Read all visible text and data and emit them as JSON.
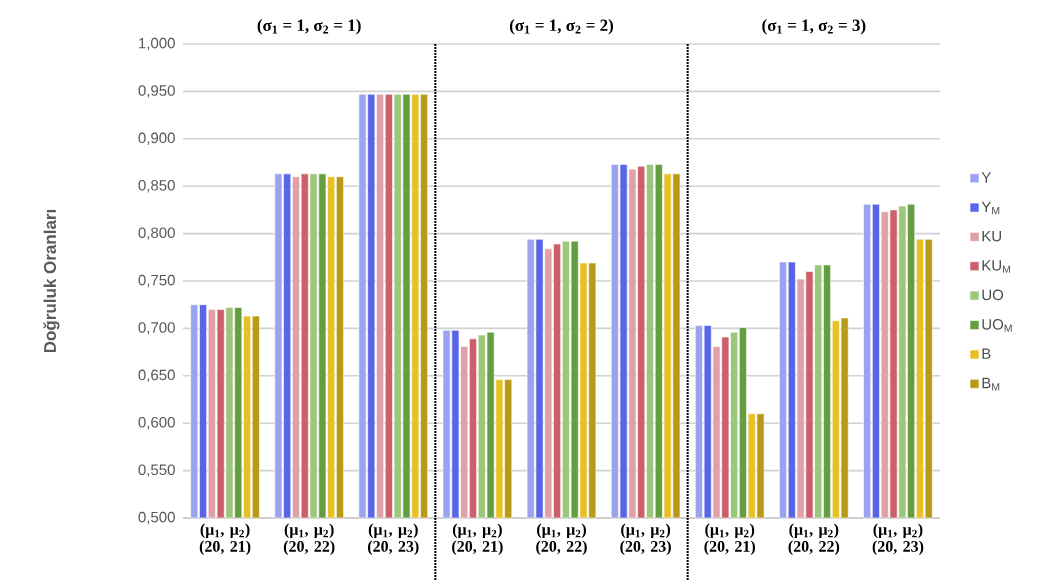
{
  "chart_data": {
    "type": "bar",
    "ylabel": "Doğruluk Oranları",
    "categories": [
      "(μ$_{1}$, μ$_{2}$) (20, 21)",
      "(μ$_{1}$, μ$_{2}$) (20, 22)",
      "(μ$_{1}$, μ$_{2}$) (20, 23)",
      "(μ$_{1}$, μ$_{2}$) (20, 21)",
      "(μ$_{1}$, μ$_{2}$) (20, 22)",
      "(μ$_{1}$, μ$_{2}$) (20, 23)",
      "(μ$_{1}$, μ$_{2}$) (20, 21)",
      "(μ$_{1}$, μ$_{2}$) (20, 22)",
      "(μ$_{1}$, μ$_{2}$) (20, 23)"
    ],
    "series": [
      {
        "name": "Y",
        "color": "#99a3ef",
        "values": [
          0.725,
          0.863,
          0.947,
          0.698,
          0.794,
          0.873,
          0.703,
          0.77,
          0.831
        ]
      },
      {
        "name": "Y$_{M}$",
        "color": "#5865e6",
        "values": [
          0.725,
          0.863,
          0.947,
          0.698,
          0.794,
          0.873,
          0.703,
          0.77,
          0.831
        ]
      },
      {
        "name": "KU",
        "color": "#e0a0a7",
        "values": [
          0.72,
          0.86,
          0.947,
          0.681,
          0.784,
          0.868,
          0.681,
          0.752,
          0.823
        ]
      },
      {
        "name": "KU$_{M}$",
        "color": "#cc5f69",
        "values": [
          0.72,
          0.863,
          0.947,
          0.689,
          0.789,
          0.871,
          0.691,
          0.76,
          0.825
        ]
      },
      {
        "name": "UO",
        "color": "#9ac77a",
        "values": [
          0.722,
          0.863,
          0.947,
          0.693,
          0.792,
          0.873,
          0.696,
          0.767,
          0.829
        ]
      },
      {
        "name": "UO$_{M}$",
        "color": "#659e40",
        "values": [
          0.722,
          0.863,
          0.947,
          0.696,
          0.792,
          0.873,
          0.701,
          0.767,
          0.831
        ]
      },
      {
        "name": "B",
        "color": "#e8c026",
        "values": [
          0.713,
          0.86,
          0.947,
          0.646,
          0.769,
          0.863,
          0.61,
          0.708,
          0.794
        ]
      },
      {
        "name": "B$_{M}$",
        "color": "#b89a18",
        "values": [
          0.713,
          0.86,
          0.947,
          0.646,
          0.769,
          0.863,
          0.61,
          0.711,
          0.794
        ]
      }
    ],
    "ylim": [
      0.5,
      1.0
    ],
    "yticks": [
      {
        "value": 0.5,
        "label": "0,500"
      },
      {
        "value": 0.55,
        "label": "0,550"
      },
      {
        "value": 0.6,
        "label": "0,600"
      },
      {
        "value": 0.65,
        "label": "0,650"
      },
      {
        "value": 0.7,
        "label": "0,700"
      },
      {
        "value": 0.75,
        "label": "0,750"
      },
      {
        "value": 0.8,
        "label": "0,800"
      },
      {
        "value": 0.85,
        "label": "0,850"
      },
      {
        "value": 0.9,
        "label": "0,900"
      },
      {
        "value": 0.95,
        "label": "0,950"
      },
      {
        "value": 1.0,
        "label": "1,000"
      }
    ],
    "grid": "y",
    "legend": "right",
    "annotations": [
      "(σ$_{1}$ = 1, σ$_{2}$ = 1)",
      "(σ$_{1}$ = 1, σ$_{2}$ = 2)",
      "(σ$_{1}$ = 1, σ$_{2}$ = 3)"
    ]
  }
}
